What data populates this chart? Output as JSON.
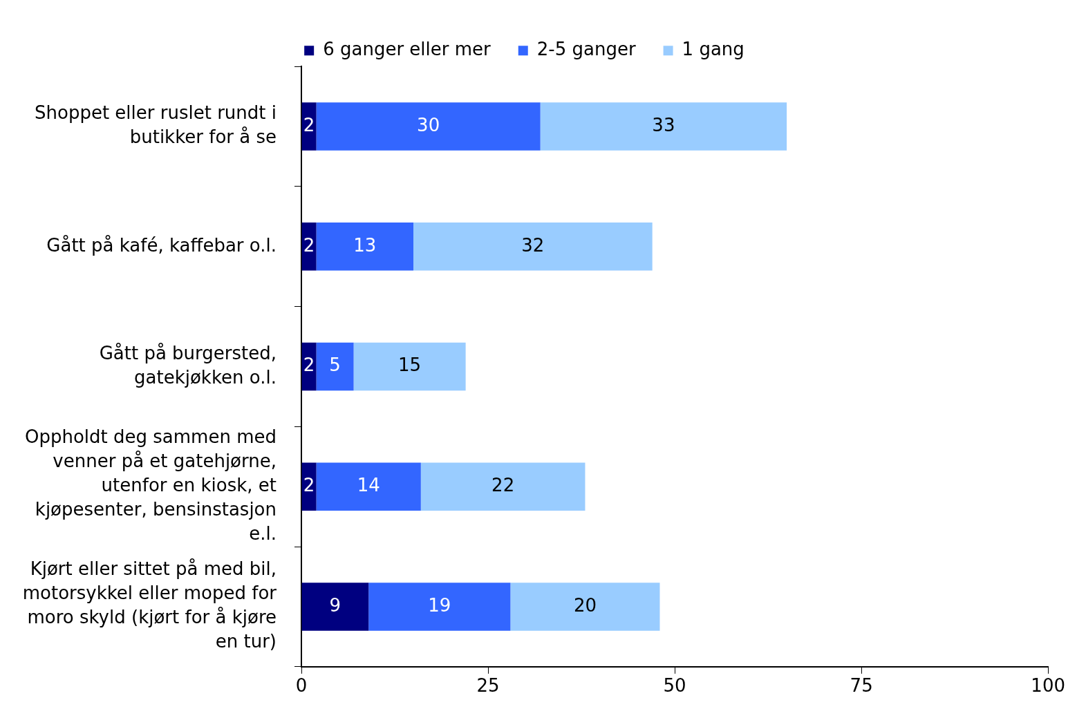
{
  "chart_data": {
    "type": "bar",
    "orientation": "horizontal",
    "stacked": true,
    "categories": [
      "Shoppet eller ruslet rundt i butikker for å se",
      "Gått på kafé, kaffebar o.l.",
      "Gått på burgersted, gatekjøkken o.l.",
      "Oppholdt deg sammen med venner på et gatehjørne, utenfor en kiosk, et kjøpesenter, bensinstasjon e.l.",
      "Kjørt eller sittet på med bil, motorsykkel eller moped for moro skyld (kjørt for å kjøre en tur)"
    ],
    "series": [
      {
        "name": "6 ganger eller mer",
        "color": "#000080",
        "values": [
          2,
          2,
          2,
          2,
          9
        ]
      },
      {
        "name": "2-5 ganger",
        "color": "#3366ff",
        "values": [
          30,
          13,
          5,
          14,
          19
        ]
      },
      {
        "name": "1 gang",
        "color": "#99ccff",
        "values": [
          33,
          32,
          15,
          22,
          20
        ]
      }
    ],
    "xlim": [
      0,
      100
    ],
    "xticks": [
      0,
      25,
      50,
      75,
      100
    ],
    "grid": false,
    "legend": "top",
    "data_labels": true
  }
}
